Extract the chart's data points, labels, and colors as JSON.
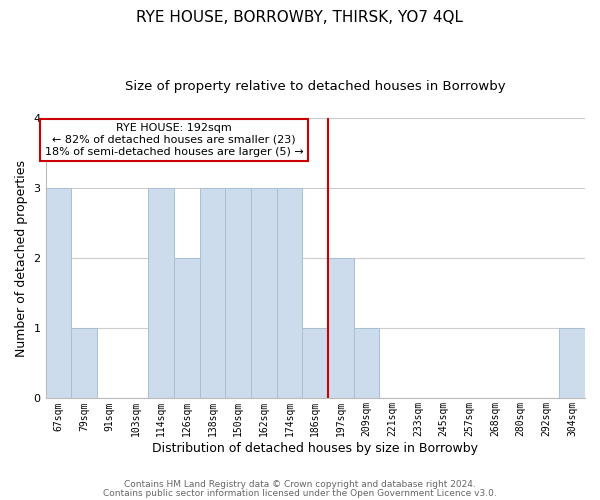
{
  "title": "RYE HOUSE, BORROWBY, THIRSK, YO7 4QL",
  "subtitle": "Size of property relative to detached houses in Borrowby",
  "xlabel": "Distribution of detached houses by size in Borrowby",
  "ylabel": "Number of detached properties",
  "bin_labels": [
    "67sqm",
    "79sqm",
    "91sqm",
    "103sqm",
    "114sqm",
    "126sqm",
    "138sqm",
    "150sqm",
    "162sqm",
    "174sqm",
    "186sqm",
    "197sqm",
    "209sqm",
    "221sqm",
    "233sqm",
    "245sqm",
    "257sqm",
    "268sqm",
    "280sqm",
    "292sqm",
    "304sqm"
  ],
  "bar_heights": [
    3,
    1,
    0,
    0,
    3,
    2,
    3,
    3,
    3,
    3,
    1,
    2,
    1,
    0,
    0,
    0,
    0,
    0,
    0,
    0,
    1
  ],
  "bar_color": "#ccdcec",
  "bar_edge_color": "#a8c0d4",
  "vline_x_index": 11,
  "vline_color": "#cc0000",
  "annotation_text": "RYE HOUSE: 192sqm\n← 82% of detached houses are smaller (23)\n18% of semi-detached houses are larger (5) →",
  "annotation_box_color": "#cc0000",
  "ylim": [
    0,
    4
  ],
  "yticks": [
    0,
    1,
    2,
    3,
    4
  ],
  "footnote1": "Contains HM Land Registry data © Crown copyright and database right 2024.",
  "footnote2": "Contains public sector information licensed under the Open Government Licence v3.0.",
  "background_color": "#ffffff",
  "grid_color": "#cccccc",
  "title_fontsize": 11,
  "subtitle_fontsize": 9.5,
  "axis_label_fontsize": 9,
  "tick_fontsize": 7,
  "annotation_fontsize": 8,
  "footnote_fontsize": 6.5
}
